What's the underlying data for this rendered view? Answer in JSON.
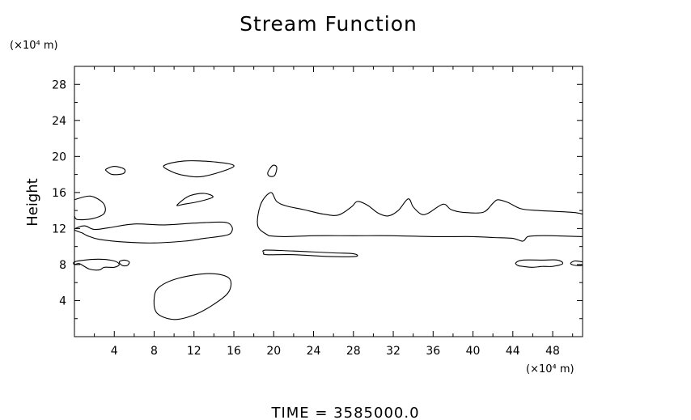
{
  "chart_data": {
    "type": "contour",
    "title": "Stream Function",
    "ylabel": "Height",
    "xlabel": "",
    "x_unit_label": "(×10⁴ m)",
    "y_unit_label": "(×10⁴ m)",
    "xlim": [
      0,
      51
    ],
    "ylim": [
      0,
      30
    ],
    "x_ticks": [
      4,
      8,
      12,
      16,
      20,
      24,
      28,
      32,
      36,
      40,
      44,
      48
    ],
    "y_ticks": [
      4,
      8,
      12,
      16,
      20,
      24,
      28
    ],
    "grid": false,
    "footer": "TIME  =  3585000.0",
    "contours": [
      {
        "name": "upper-left-lobe",
        "closed": false,
        "points": [
          [
            0,
            15.2
          ],
          [
            1.6,
            15.6
          ],
          [
            2.9,
            14.8
          ],
          [
            3,
            13.7
          ],
          [
            1.8,
            13.1
          ],
          [
            0.3,
            13
          ],
          [
            0,
            13.4
          ]
        ]
      },
      {
        "name": "small-blob-4-18",
        "closed": true,
        "points": [
          [
            3.2,
            18.6
          ],
          [
            4,
            18.9
          ],
          [
            5,
            18.6
          ],
          [
            4.9,
            18.1
          ],
          [
            3.8,
            18
          ],
          [
            3.2,
            18.4
          ]
        ]
      },
      {
        "name": "blob-11-19",
        "closed": true,
        "points": [
          [
            9,
            19
          ],
          [
            11,
            19.5
          ],
          [
            14,
            19.4
          ],
          [
            16,
            18.9
          ],
          [
            13,
            17.8
          ],
          [
            11,
            17.9
          ],
          [
            9.6,
            18.4
          ]
        ]
      },
      {
        "name": "blob-12-15",
        "closed": true,
        "points": [
          [
            10.3,
            14.6
          ],
          [
            11.5,
            15.6
          ],
          [
            13,
            15.9
          ],
          [
            13.9,
            15.5
          ],
          [
            12.5,
            15
          ],
          [
            11,
            14.7
          ]
        ]
      },
      {
        "name": "small-blob-20-19",
        "closed": true,
        "points": [
          [
            19.4,
            18.2
          ],
          [
            19.9,
            19
          ],
          [
            20.3,
            18.8
          ],
          [
            20.1,
            17.9
          ],
          [
            19.6,
            17.8
          ]
        ]
      },
      {
        "name": "left-band",
        "closed": true,
        "points": [
          [
            0,
            11.9
          ],
          [
            1,
            12.3
          ],
          [
            2,
            11.9
          ],
          [
            3.5,
            12.1
          ],
          [
            6,
            12.5
          ],
          [
            9,
            12.4
          ],
          [
            12,
            12.6
          ],
          [
            15,
            12.7
          ],
          [
            15.8,
            12.2
          ],
          [
            15.7,
            11.5
          ],
          [
            15,
            11.2
          ],
          [
            13,
            10.9
          ],
          [
            11,
            10.6
          ],
          [
            8,
            10.4
          ],
          [
            5,
            10.5
          ],
          [
            2.5,
            10.8
          ],
          [
            1.3,
            11.2
          ],
          [
            0.8,
            11.5
          ]
        ]
      },
      {
        "name": "main-right-upper",
        "closed": false,
        "points": [
          [
            19.5,
            11.2
          ],
          [
            18.4,
            12.3
          ],
          [
            18.7,
            14.7
          ],
          [
            19.7,
            16
          ],
          [
            20.3,
            15
          ],
          [
            21.3,
            14.5
          ],
          [
            23,
            14.1
          ],
          [
            25,
            13.6
          ],
          [
            26.5,
            13.5
          ],
          [
            27.8,
            14.4
          ],
          [
            28.4,
            15
          ],
          [
            29.4,
            14.6
          ],
          [
            30.5,
            13.7
          ],
          [
            31.5,
            13.4
          ],
          [
            32.5,
            14
          ],
          [
            33.5,
            15.3
          ],
          [
            34,
            14.4
          ],
          [
            34.8,
            13.6
          ],
          [
            35.5,
            13.7
          ],
          [
            37,
            14.7
          ],
          [
            37.8,
            14.1
          ],
          [
            39,
            13.8
          ],
          [
            41,
            13.8
          ],
          [
            42,
            14.8
          ],
          [
            42.5,
            15.2
          ],
          [
            43.5,
            14.9
          ],
          [
            44.8,
            14.2
          ],
          [
            46.5,
            14
          ],
          [
            50,
            13.8
          ],
          [
            51,
            13.6
          ]
        ]
      },
      {
        "name": "main-right-lower",
        "closed": false,
        "points": [
          [
            19.5,
            11.2
          ],
          [
            21,
            11.1
          ],
          [
            24,
            11.2
          ],
          [
            28,
            11.2
          ],
          [
            32,
            11.2
          ],
          [
            36,
            11.1
          ],
          [
            40,
            11.1
          ],
          [
            42,
            11
          ],
          [
            44,
            10.9
          ],
          [
            45,
            10.6
          ],
          [
            45.5,
            11.1
          ],
          [
            46.5,
            11.2
          ],
          [
            48,
            11.2
          ],
          [
            51,
            11.1
          ]
        ]
      },
      {
        "name": "thin-20-9",
        "closed": true,
        "points": [
          [
            19,
            9.3
          ],
          [
            19.2,
            9.6
          ],
          [
            22,
            9.5
          ],
          [
            26,
            9.3
          ],
          [
            28,
            9.2
          ],
          [
            28.2,
            8.9
          ],
          [
            25.5,
            8.9
          ],
          [
            22,
            9.1
          ],
          [
            19.3,
            9.1
          ]
        ]
      },
      {
        "name": "left-8-blob",
        "closed": true,
        "points": [
          [
            0,
            8.3
          ],
          [
            1,
            8.5
          ],
          [
            2.5,
            8.6
          ],
          [
            4,
            8.4
          ],
          [
            4.5,
            8
          ],
          [
            4,
            7.7
          ],
          [
            3,
            7.7
          ],
          [
            2.5,
            7.4
          ],
          [
            1.5,
            7.5
          ],
          [
            0.5,
            8.1
          ],
          [
            0,
            8
          ]
        ]
      },
      {
        "name": "small-5-8",
        "closed": true,
        "points": [
          [
            4.5,
            8.3
          ],
          [
            5,
            8.5
          ],
          [
            5.5,
            8.3
          ],
          [
            5.3,
            7.9
          ],
          [
            4.8,
            7.9
          ]
        ]
      },
      {
        "name": "right-8-blob",
        "closed": true,
        "points": [
          [
            44.3,
            8.2
          ],
          [
            45,
            8.5
          ],
          [
            47,
            8.5
          ],
          [
            48.5,
            8.5
          ],
          [
            49,
            8.1
          ],
          [
            48,
            7.8
          ],
          [
            47,
            7.8
          ],
          [
            46,
            7.7
          ],
          [
            45,
            7.8
          ],
          [
            44.5,
            7.9
          ]
        ]
      },
      {
        "name": "edge-8",
        "closed": false,
        "points": [
          [
            51,
            8.3
          ],
          [
            50.2,
            8.4
          ],
          [
            49.8,
            8.1
          ],
          [
            50.3,
            7.9
          ],
          [
            51,
            7.9
          ]
        ]
      },
      {
        "name": "ellipse-4",
        "closed": true,
        "points": [
          [
            8,
            4.2
          ],
          [
            8.5,
            5.5
          ],
          [
            10.5,
            6.5
          ],
          [
            13.5,
            7
          ],
          [
            15.5,
            6.5
          ],
          [
            15.5,
            5
          ],
          [
            14,
            3.6
          ],
          [
            12,
            2.4
          ],
          [
            10,
            1.9
          ],
          [
            8.3,
            2.6
          ]
        ]
      }
    ]
  }
}
